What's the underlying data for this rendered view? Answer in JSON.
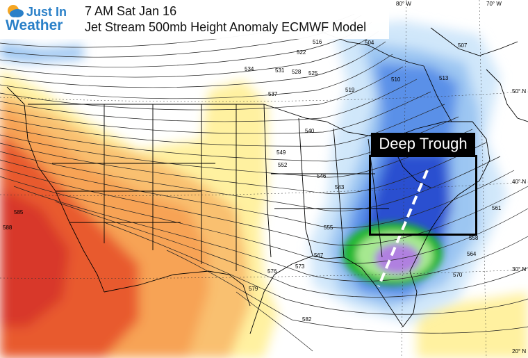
{
  "logo": {
    "line1": "Just In",
    "line2": "Weather"
  },
  "title": {
    "line1": "7 AM Sat Jan 16",
    "line2": "Jet Stream 500mb Height Anomaly ECMWF Model"
  },
  "annotation": {
    "label": "Deep Trough"
  },
  "latitude_labels": [
    "50° N",
    "40° N",
    "30° N",
    "20° N"
  ],
  "longitude_labels": [
    "80° W",
    "70° W"
  ],
  "contour_labels": [
    "588",
    "585",
    "582",
    "579",
    "576",
    "573",
    "570",
    "567",
    "564",
    "561",
    "558",
    "555",
    "552",
    "549",
    "546",
    "543",
    "540",
    "537",
    "534",
    "531",
    "528",
    "525",
    "522",
    "519",
    "516",
    "513",
    "510",
    "507",
    "504"
  ],
  "colors": {
    "low_anomaly_deep": "#2a50d0",
    "low_anomaly": "#5a90e8",
    "low_anomaly_light": "#9cc6f2",
    "low_anomaly_pale": "#d0e7fa",
    "trough_core_green": "#22b830",
    "trough_core_lightgreen": "#a6e890",
    "trough_core_purple": "#b080e0",
    "high_anomaly_yellow": "#fff1a0",
    "high_anomaly_orange": "#f7a354",
    "high_anomaly_red": "#e85a2e",
    "high_anomaly_deepred": "#d8382a",
    "brand_blue": "#2a80c8"
  }
}
